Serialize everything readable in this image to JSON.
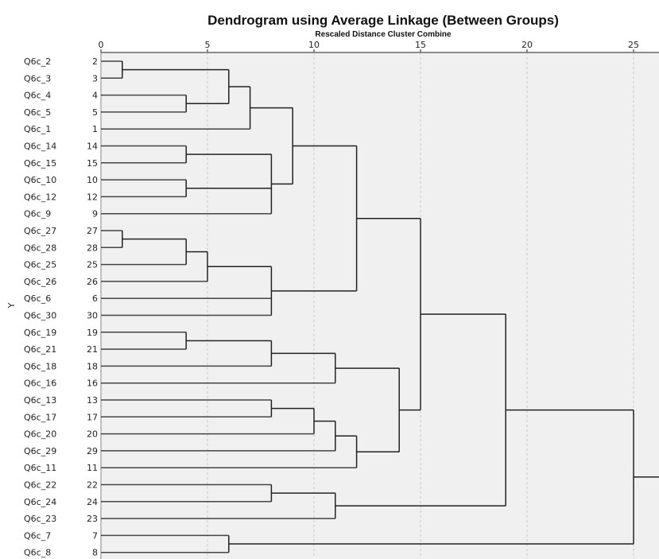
{
  "chart_data": {
    "type": "dendrogram",
    "title": "Dendrogram using Average Linkage (Between Groups)",
    "subtitle": "Rescaled Distance Cluster Combine",
    "ylabel": "Y",
    "xlim": [
      0,
      25
    ],
    "xticks": [
      0,
      5,
      10,
      15,
      20,
      25
    ],
    "grid": "vertical dashed",
    "leaves": [
      {
        "label": "Q6c_2",
        "case": "2"
      },
      {
        "label": "Q6c_3",
        "case": "3"
      },
      {
        "label": "Q6c_4",
        "case": "4"
      },
      {
        "label": "Q6c_5",
        "case": "5"
      },
      {
        "label": "Q6c_1",
        "case": "1"
      },
      {
        "label": "Q6c_14",
        "case": "14"
      },
      {
        "label": "Q6c_15",
        "case": "15"
      },
      {
        "label": "Q6c_10",
        "case": "10"
      },
      {
        "label": "Q6c_12",
        "case": "12"
      },
      {
        "label": "Q6c_9",
        "case": "9"
      },
      {
        "label": "Q6c_27",
        "case": "27"
      },
      {
        "label": "Q6c_28",
        "case": "28"
      },
      {
        "label": "Q6c_25",
        "case": "25"
      },
      {
        "label": "Q6c_26",
        "case": "26"
      },
      {
        "label": "Q6c_6",
        "case": "6"
      },
      {
        "label": "Q6c_30",
        "case": "30"
      },
      {
        "label": "Q6c_19",
        "case": "19"
      },
      {
        "label": "Q6c_21",
        "case": "21"
      },
      {
        "label": "Q6c_18",
        "case": "18"
      },
      {
        "label": "Q6c_16",
        "case": "16"
      },
      {
        "label": "Q6c_13",
        "case": "13"
      },
      {
        "label": "Q6c_17",
        "case": "17"
      },
      {
        "label": "Q6c_20",
        "case": "20"
      },
      {
        "label": "Q6c_29",
        "case": "29"
      },
      {
        "label": "Q6c_11",
        "case": "11"
      },
      {
        "label": "Q6c_22",
        "case": "22"
      },
      {
        "label": "Q6c_24",
        "case": "24"
      },
      {
        "label": "Q6c_23",
        "case": "23"
      },
      {
        "label": "Q6c_7",
        "case": "7"
      },
      {
        "label": "Q6c_8",
        "case": "8"
      }
    ],
    "merges": [
      {
        "id": "A",
        "children": [
          0,
          1
        ],
        "distance": 1
      },
      {
        "id": "B",
        "children": [
          2,
          3
        ],
        "distance": 4
      },
      {
        "id": "C",
        "children": [
          "A",
          "B"
        ],
        "distance": 6
      },
      {
        "id": "D",
        "children": [
          "C",
          4
        ],
        "distance": 7
      },
      {
        "id": "E",
        "children": [
          5,
          6
        ],
        "distance": 4
      },
      {
        "id": "F",
        "children": [
          7,
          8
        ],
        "distance": 4
      },
      {
        "id": "G",
        "children": [
          "E",
          "F",
          9
        ],
        "distance": 8
      },
      {
        "id": "H",
        "children": [
          "D",
          "G"
        ],
        "distance": 9
      },
      {
        "id": "I",
        "children": [
          10,
          11
        ],
        "distance": 1
      },
      {
        "id": "J",
        "children": [
          "I",
          12
        ],
        "distance": 4
      },
      {
        "id": "K",
        "children": [
          "J",
          13
        ],
        "distance": 5
      },
      {
        "id": "L",
        "children": [
          "K",
          14,
          15
        ],
        "distance": 8
      },
      {
        "id": "M",
        "children": [
          "H",
          "L"
        ],
        "distance": 12
      },
      {
        "id": "N",
        "children": [
          16,
          17
        ],
        "distance": 4
      },
      {
        "id": "O",
        "children": [
          "N",
          18
        ],
        "distance": 8
      },
      {
        "id": "P",
        "children": [
          "O",
          19
        ],
        "distance": 11
      },
      {
        "id": "Q",
        "children": [
          20,
          21
        ],
        "distance": 8
      },
      {
        "id": "R",
        "children": [
          "Q",
          22
        ],
        "distance": 10
      },
      {
        "id": "S",
        "children": [
          "R",
          23
        ],
        "distance": 11
      },
      {
        "id": "T",
        "children": [
          "S",
          24
        ],
        "distance": 12
      },
      {
        "id": "U",
        "children": [
          "P",
          "T"
        ],
        "distance": 14
      },
      {
        "id": "V",
        "children": [
          "M",
          "U"
        ],
        "distance": 15
      },
      {
        "id": "W",
        "children": [
          25,
          26
        ],
        "distance": 8
      },
      {
        "id": "X",
        "children": [
          "W",
          27
        ],
        "distance": 11
      },
      {
        "id": "Y",
        "children": [
          "V",
          "X"
        ],
        "distance": 19
      },
      {
        "id": "Z",
        "children": [
          28,
          29
        ],
        "distance": 6
      },
      {
        "id": "ROOT",
        "children": [
          "Y",
          "Z"
        ],
        "distance": 25
      }
    ]
  }
}
